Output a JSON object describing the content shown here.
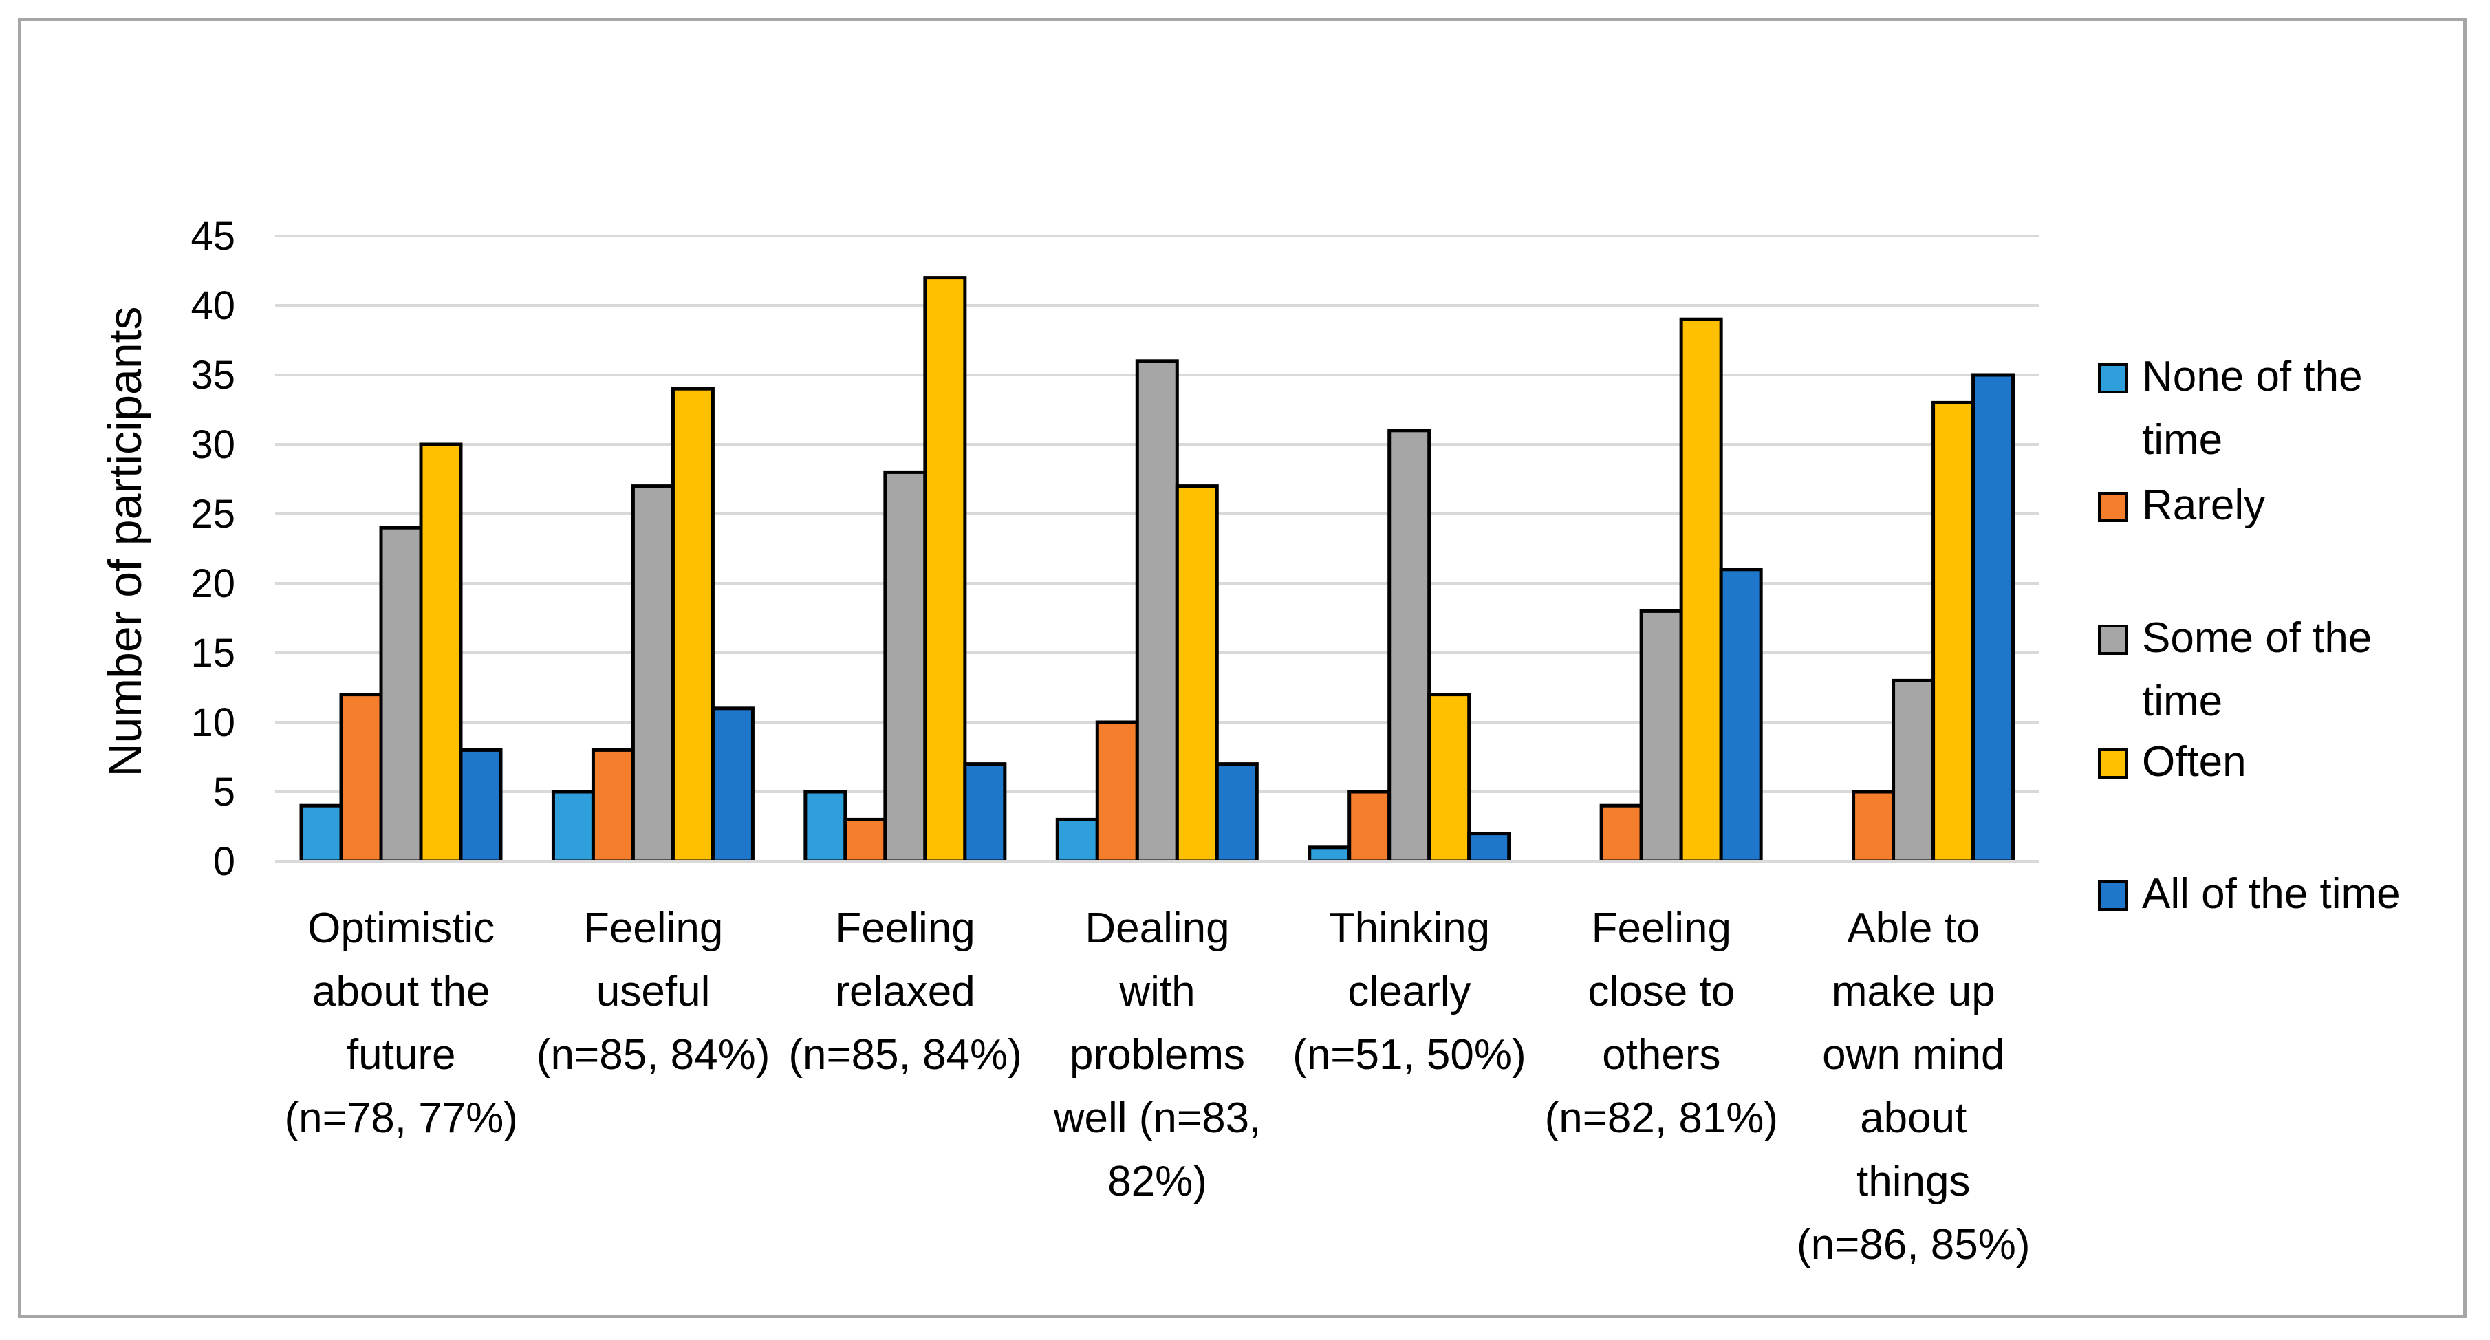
{
  "chart_data": {
    "type": "bar",
    "title": "",
    "xlabel": "",
    "ylabel": "Number of participants",
    "ylim": [
      0,
      45
    ],
    "y_ticks": [
      0,
      5,
      10,
      15,
      20,
      25,
      30,
      35,
      40,
      45
    ],
    "grid": true,
    "legend_position": "right",
    "categories": [
      [
        "Optimistic",
        "about the",
        "future",
        "(n=78, 77%)"
      ],
      [
        "Feeling",
        "useful",
        "(n=85, 84%)"
      ],
      [
        "Feeling",
        "relaxed",
        "(n=85, 84%)"
      ],
      [
        "Dealing",
        "with",
        "problems",
        "well (n=83,",
        "82%)"
      ],
      [
        "Thinking",
        "clearly",
        "(n=51, 50%)"
      ],
      [
        "Feeling",
        "close to",
        "others",
        "(n=82, 81%)"
      ],
      [
        "Able to",
        "make up",
        "own mind",
        "about",
        "things",
        "(n=86, 85%)"
      ]
    ],
    "series": [
      {
        "name": "None of the time",
        "legend_lines": [
          "None of the",
          "time"
        ],
        "color": "#2e9fdb",
        "values": [
          4,
          5,
          5,
          3,
          1,
          0,
          0
        ]
      },
      {
        "name": "Rarely",
        "legend_lines": [
          "Rarely"
        ],
        "color": "#f57e2c",
        "values": [
          12,
          8,
          3,
          10,
          5,
          4,
          5
        ]
      },
      {
        "name": "Some of the time",
        "legend_lines": [
          "Some of the",
          "time"
        ],
        "color": "#a6a6a6",
        "values": [
          24,
          27,
          28,
          36,
          31,
          18,
          13
        ]
      },
      {
        "name": "Often",
        "legend_lines": [
          "Often"
        ],
        "color": "#ffc000",
        "values": [
          30,
          34,
          42,
          27,
          12,
          39,
          33
        ]
      },
      {
        "name": "All of the time",
        "legend_lines": [
          "All of the time"
        ],
        "color": "#1f77cc",
        "values": [
          8,
          11,
          7,
          7,
          2,
          21,
          35
        ]
      }
    ]
  }
}
